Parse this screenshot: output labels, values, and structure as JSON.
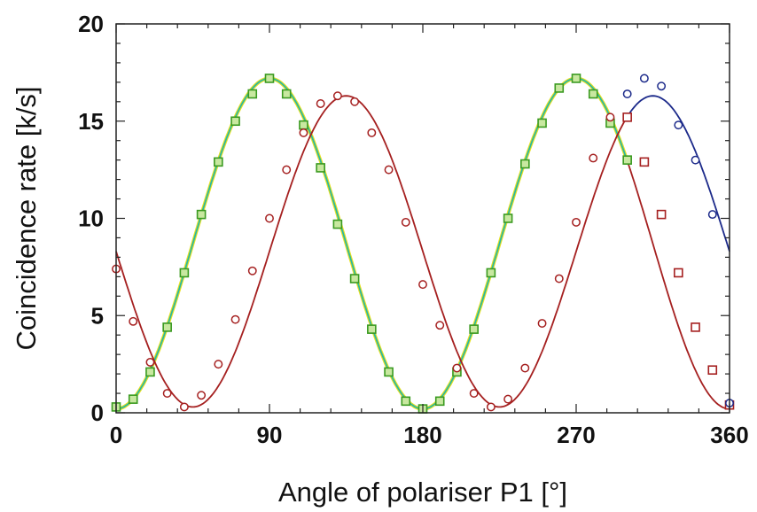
{
  "chart_data": {
    "type": "scatter",
    "title": "",
    "xlabel": "Angle of polariser P1 [°]",
    "ylabel": "Coincidence rate [k/s]",
    "xlim": [
      0,
      360
    ],
    "ylim": [
      0,
      20
    ],
    "xticks": [
      0,
      90,
      180,
      270,
      360
    ],
    "xtick_labels": [
      "0",
      "90",
      "180",
      "270",
      "360"
    ],
    "yticks": [
      0,
      5,
      10,
      15,
      20
    ],
    "ytick_labels": [
      "0",
      "5",
      "10",
      "15",
      "20"
    ],
    "grid": false,
    "series": [
      {
        "marker": "square",
        "color": "#3a9a20",
        "fill": "#c8e8a0",
        "points": [
          [
            0,
            0.3
          ],
          [
            10,
            0.7
          ],
          [
            20,
            2.1
          ],
          [
            30,
            4.4
          ],
          [
            40,
            7.2
          ],
          [
            50,
            10.2
          ],
          [
            60,
            12.9
          ],
          [
            70,
            15.0
          ],
          [
            80,
            16.4
          ],
          [
            90,
            17.2
          ],
          [
            100,
            16.4
          ],
          [
            110,
            14.8
          ],
          [
            120,
            12.6
          ],
          [
            130,
            9.7
          ],
          [
            140,
            6.9
          ],
          [
            150,
            4.3
          ],
          [
            160,
            2.1
          ],
          [
            170,
            0.6
          ],
          [
            180,
            0.2
          ],
          [
            190,
            0.6
          ],
          [
            200,
            2.1
          ],
          [
            210,
            4.3
          ],
          [
            220,
            7.2
          ],
          [
            230,
            10.0
          ],
          [
            240,
            12.8
          ],
          [
            250,
            14.9
          ],
          [
            260,
            16.7
          ],
          [
            270,
            17.2
          ],
          [
            280,
            16.4
          ],
          [
            290,
            14.9
          ],
          [
            300,
            13.0
          ]
        ]
      },
      {
        "marker": "circle",
        "color": "#a52020",
        "points": [
          [
            0,
            7.4
          ],
          [
            10,
            4.7
          ],
          [
            20,
            2.6
          ],
          [
            30,
            1.0
          ],
          [
            40,
            0.3
          ],
          [
            50,
            0.9
          ],
          [
            60,
            2.5
          ],
          [
            70,
            4.8
          ],
          [
            80,
            7.3
          ],
          [
            90,
            10.0
          ],
          [
            100,
            12.5
          ],
          [
            110,
            14.4
          ],
          [
            120,
            15.9
          ],
          [
            130,
            16.3
          ],
          [
            140,
            16.0
          ],
          [
            150,
            14.4
          ],
          [
            160,
            12.5
          ],
          [
            170,
            9.8
          ],
          [
            180,
            6.6
          ],
          [
            190,
            4.5
          ],
          [
            200,
            2.3
          ],
          [
            210,
            1.0
          ],
          [
            220,
            0.3
          ],
          [
            230,
            0.7
          ],
          [
            240,
            2.3
          ],
          [
            250,
            4.6
          ],
          [
            260,
            6.9
          ],
          [
            270,
            9.8
          ],
          [
            280,
            13.1
          ],
          [
            290,
            15.2
          ]
        ]
      },
      {
        "marker": "square",
        "color": "#a52020",
        "points": [
          [
            300,
            15.2
          ],
          [
            310,
            12.9
          ],
          [
            320,
            10.2
          ],
          [
            330,
            7.2
          ],
          [
            340,
            4.4
          ],
          [
            350,
            2.2
          ],
          [
            360,
            0.4
          ]
        ]
      },
      {
        "marker": "circle",
        "color": "#1c2a8a",
        "points": [
          [
            300,
            16.4
          ],
          [
            310,
            17.2
          ],
          [
            320,
            16.8
          ],
          [
            330,
            14.8
          ],
          [
            340,
            13.0
          ],
          [
            350,
            10.2
          ],
          [
            360,
            0.5
          ]
        ]
      }
    ],
    "fits": [
      {
        "form": "A*sin^2(x) + c",
        "amplitude": 17.0,
        "offset": 0.2,
        "phase": 0,
        "period": 180,
        "x_range": [
          0,
          300
        ],
        "color": "#2bb8a0",
        "highlight": "#e8e020"
      },
      {
        "form": "A*sin^2(x - phi) + c",
        "amplitude": 16.0,
        "offset": 0.3,
        "phase": 45,
        "period": 180,
        "x_range": [
          0,
          300
        ],
        "color": "#a52020"
      },
      {
        "form": "A*sin^2(x) + c",
        "amplitude": 17.0,
        "offset": 0.2,
        "phase": 0,
        "period": 180,
        "x_range": [
          300,
          360
        ],
        "color": "#a52020"
      },
      {
        "form": "A*sin^2(x - phi) + c",
        "amplitude": 16.0,
        "offset": 0.3,
        "phase": 45,
        "period": 180,
        "x_range": [
          300,
          360
        ],
        "color": "#1c2a8a"
      }
    ]
  }
}
